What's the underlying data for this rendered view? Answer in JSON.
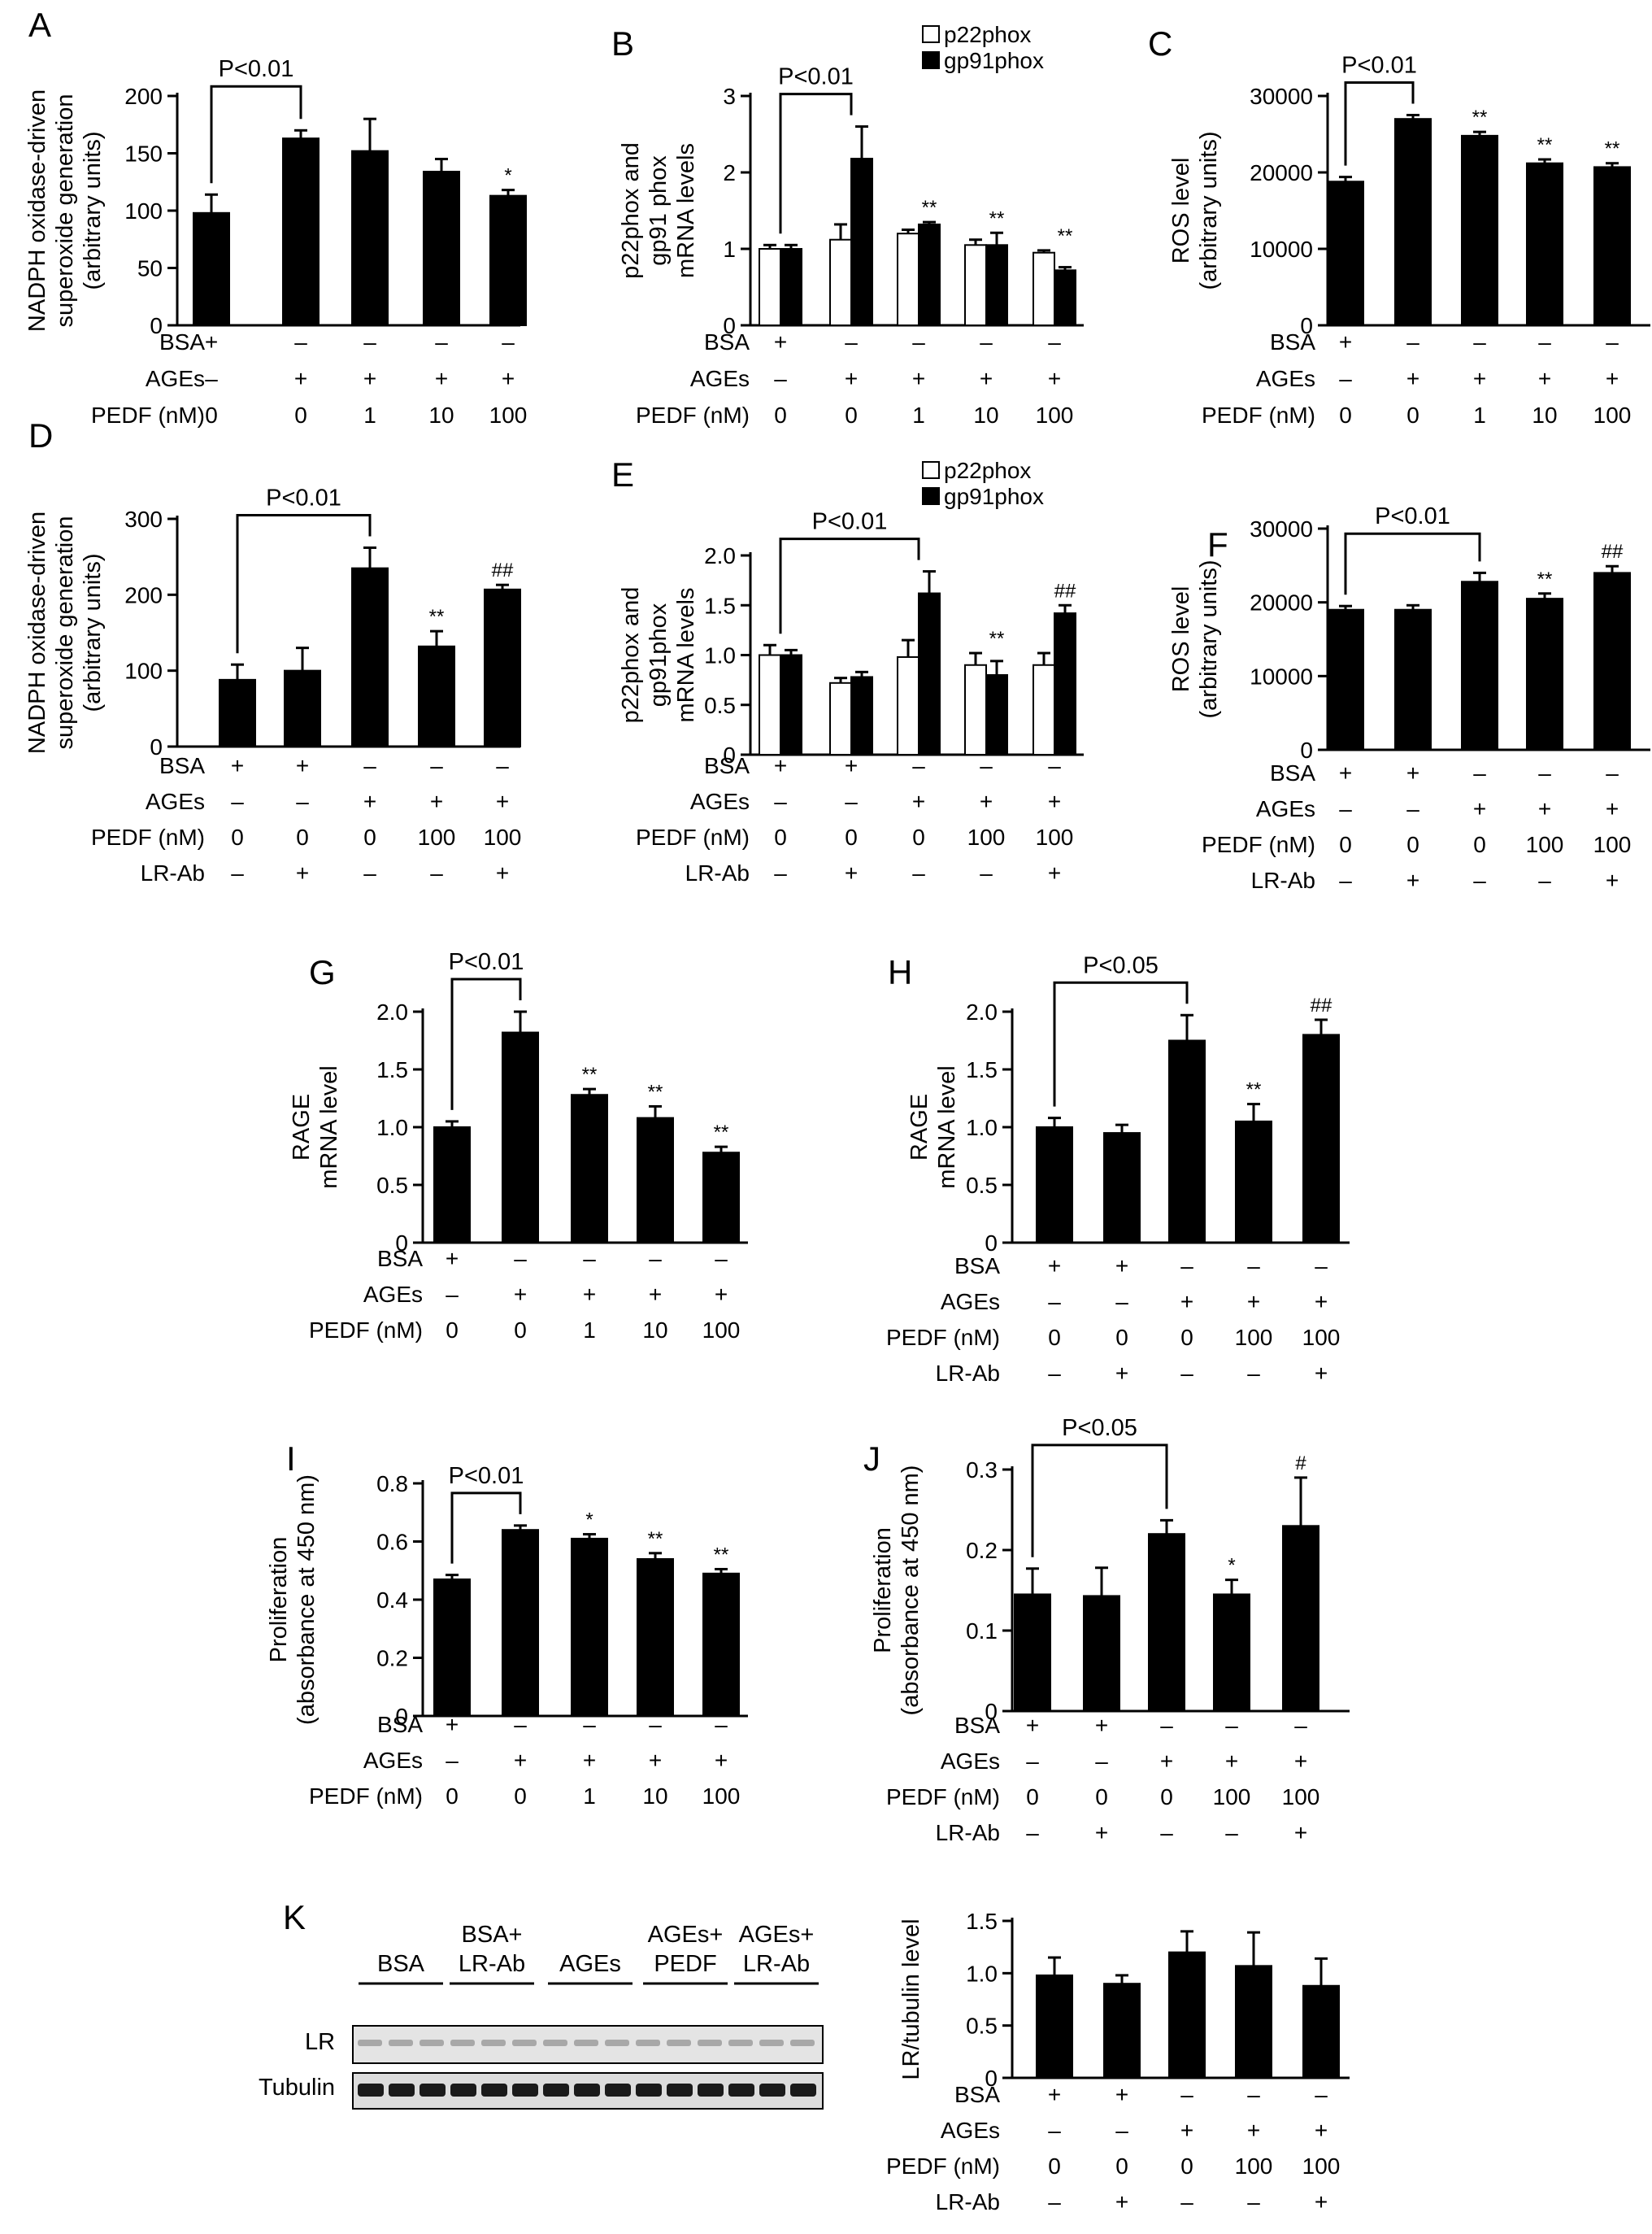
{
  "chart_data": [
    {
      "panel": "A",
      "type": "bar",
      "ylabel": [
        "NADPH oxidase-driven",
        "superoxide generation",
        "(arbitrary units)"
      ],
      "yticks": [
        0,
        50,
        100,
        150,
        200
      ],
      "ylim": [
        0,
        200
      ],
      "series": [
        {
          "values": [
            98,
            163,
            152,
            134,
            113
          ],
          "errors": [
            16,
            7,
            28,
            11,
            5
          ]
        }
      ],
      "significance": [
        "",
        "",
        "",
        "",
        "*"
      ],
      "bracket": {
        "from": 0,
        "to": 1,
        "label": "P<0.01"
      },
      "conditions": [
        {
          "label": "BSA",
          "values": [
            "+",
            "–",
            "–",
            "–",
            "–"
          ]
        },
        {
          "label": "AGEs",
          "values": [
            "–",
            "+",
            "+",
            "+",
            "+"
          ]
        },
        {
          "label": "PEDF (nM)",
          "values": [
            "0",
            "0",
            "1",
            "10",
            "100"
          ]
        }
      ]
    },
    {
      "panel": "B",
      "type": "bar",
      "ylabel": [
        "p22phox and",
        "gp91 phox",
        "mRNA levels"
      ],
      "yticks": [
        0,
        1,
        2,
        3
      ],
      "ylim": [
        0,
        3
      ],
      "series": [
        {
          "name": "p22phox",
          "values": [
            1.0,
            1.12,
            1.2,
            1.05,
            0.95
          ],
          "errors": [
            0.05,
            0.2,
            0.05,
            0.07,
            0.03
          ]
        },
        {
          "name": "gp91phox",
          "values": [
            1.0,
            2.18,
            1.32,
            1.05,
            0.72
          ],
          "errors": [
            0.05,
            0.42,
            0.03,
            0.16,
            0.04
          ]
        }
      ],
      "significance": [
        "",
        "",
        "**",
        "**",
        "**"
      ],
      "bracket": {
        "from": 0,
        "to": 1,
        "label": "P<0.01"
      },
      "conditions": [
        {
          "label": "BSA",
          "values": [
            "+",
            "–",
            "–",
            "–",
            "–"
          ]
        },
        {
          "label": "AGEs",
          "values": [
            "–",
            "+",
            "+",
            "+",
            "+"
          ]
        },
        {
          "label": "PEDF (nM)",
          "values": [
            "0",
            "0",
            "1",
            "10",
            "100"
          ]
        }
      ]
    },
    {
      "panel": "C",
      "type": "bar",
      "ylabel": [
        "ROS level",
        "(arbitrary units)"
      ],
      "yticks": [
        0,
        10000,
        20000,
        30000
      ],
      "ylim": [
        0,
        30000
      ],
      "series": [
        {
          "values": [
            18800,
            27000,
            24800,
            21200,
            20700
          ],
          "errors": [
            600,
            500,
            500,
            500,
            500
          ]
        }
      ],
      "significance": [
        "",
        "",
        "**",
        "**",
        "**"
      ],
      "bracket": {
        "from": 0,
        "to": 1,
        "label": "P<0.01"
      },
      "conditions": [
        {
          "label": "BSA",
          "values": [
            "+",
            "–",
            "–",
            "–",
            "–"
          ]
        },
        {
          "label": "AGEs",
          "values": [
            "–",
            "+",
            "+",
            "+",
            "+"
          ]
        },
        {
          "label": "PEDF (nM)",
          "values": [
            "0",
            "0",
            "1",
            "10",
            "100"
          ]
        }
      ]
    },
    {
      "panel": "D",
      "type": "bar",
      "ylabel": [
        "NADPH oxidase-driven",
        "superoxide generation",
        "(arbitrary units)"
      ],
      "yticks": [
        0,
        100,
        200,
        300
      ],
      "ylim": [
        0,
        300
      ],
      "series": [
        {
          "values": [
            88,
            100,
            235,
            132,
            207
          ],
          "errors": [
            20,
            30,
            27,
            20,
            6
          ]
        }
      ],
      "significance": [
        "",
        "",
        "",
        "**",
        "##"
      ],
      "bracket": {
        "from": 0,
        "to": 2,
        "label": "P<0.01"
      },
      "conditions": [
        {
          "label": "BSA",
          "values": [
            "+",
            "+",
            "–",
            "–",
            "–"
          ]
        },
        {
          "label": "AGEs",
          "values": [
            "–",
            "–",
            "+",
            "+",
            "+"
          ]
        },
        {
          "label": "PEDF (nM)",
          "values": [
            "0",
            "0",
            "0",
            "100",
            "100"
          ]
        },
        {
          "label": "LR-Ab",
          "values": [
            "–",
            "+",
            "–",
            "–",
            "+"
          ]
        }
      ]
    },
    {
      "panel": "E",
      "type": "bar",
      "ylabel": [
        "p22phox and",
        "gp91phox",
        "mRNA levels"
      ],
      "yticks": [
        0,
        0.5,
        1.0,
        1.5,
        2.0
      ],
      "yticklabels": [
        "0",
        "0.5",
        "1.0",
        "1.5",
        "2.0"
      ],
      "ylim": [
        0,
        2.0
      ],
      "series": [
        {
          "name": "p22phox",
          "values": [
            1.0,
            0.72,
            0.98,
            0.9,
            0.9
          ],
          "errors": [
            0.1,
            0.05,
            0.17,
            0.12,
            0.12
          ]
        },
        {
          "name": "gp91phox",
          "values": [
            1.0,
            0.78,
            1.62,
            0.8,
            1.42
          ],
          "errors": [
            0.05,
            0.05,
            0.22,
            0.14,
            0.08
          ]
        }
      ],
      "significance": [
        "",
        "",
        "",
        "**",
        "##"
      ],
      "bracket": {
        "from": 0,
        "to": 2,
        "label": "P<0.01"
      },
      "conditions": [
        {
          "label": "BSA",
          "values": [
            "+",
            "+",
            "–",
            "–",
            "–"
          ]
        },
        {
          "label": "AGEs",
          "values": [
            "–",
            "–",
            "+",
            "+",
            "+"
          ]
        },
        {
          "label": "PEDF (nM)",
          "values": [
            "0",
            "0",
            "0",
            "100",
            "100"
          ]
        },
        {
          "label": "LR-Ab",
          "values": [
            "–",
            "+",
            "–",
            "–",
            "+"
          ]
        }
      ]
    },
    {
      "panel": "F",
      "type": "bar",
      "ylabel": [
        "ROS level",
        "(arbitrary units)"
      ],
      "yticks": [
        0,
        10000,
        20000,
        30000
      ],
      "ylim": [
        0,
        30000
      ],
      "series": [
        {
          "values": [
            19000,
            19000,
            22800,
            20500,
            24000
          ],
          "errors": [
            500,
            600,
            1200,
            700,
            900
          ]
        }
      ],
      "significance": [
        "",
        "",
        "",
        "**",
        "##"
      ],
      "bracket": {
        "from": 0,
        "to": 2,
        "label": "P<0.01"
      },
      "conditions": [
        {
          "label": "BSA",
          "values": [
            "+",
            "+",
            "–",
            "–",
            "–"
          ]
        },
        {
          "label": "AGEs",
          "values": [
            "–",
            "–",
            "+",
            "+",
            "+"
          ]
        },
        {
          "label": "PEDF (nM)",
          "values": [
            "0",
            "0",
            "0",
            "100",
            "100"
          ]
        },
        {
          "label": "LR-Ab",
          "values": [
            "–",
            "+",
            "–",
            "–",
            "+"
          ]
        }
      ]
    },
    {
      "panel": "G",
      "type": "bar",
      "ylabel": [
        "RAGE",
        "mRNA level"
      ],
      "yticks": [
        0,
        0.5,
        1.0,
        1.5,
        2.0
      ],
      "yticklabels": [
        "0",
        "0.5",
        "1.0",
        "1.5",
        "2.0"
      ],
      "ylim": [
        0,
        2.0
      ],
      "series": [
        {
          "values": [
            1.0,
            1.82,
            1.28,
            1.08,
            0.78
          ],
          "errors": [
            0.05,
            0.18,
            0.05,
            0.1,
            0.05
          ]
        }
      ],
      "significance": [
        "",
        "",
        "**",
        "**",
        "**"
      ],
      "bracket": {
        "from": 0,
        "to": 1,
        "label": "P<0.01"
      },
      "conditions": [
        {
          "label": "BSA",
          "values": [
            "+",
            "–",
            "–",
            "–",
            "–"
          ]
        },
        {
          "label": "AGEs",
          "values": [
            "–",
            "+",
            "+",
            "+",
            "+"
          ]
        },
        {
          "label": "PEDF (nM)",
          "values": [
            "0",
            "0",
            "1",
            "10",
            "100"
          ]
        }
      ]
    },
    {
      "panel": "H",
      "type": "bar",
      "ylabel": [
        "RAGE",
        "mRNA level"
      ],
      "yticks": [
        0,
        0.5,
        1.0,
        1.5,
        2.0
      ],
      "yticklabels": [
        "0",
        "0.5",
        "1.0",
        "1.5",
        "2.0"
      ],
      "ylim": [
        0,
        2.0
      ],
      "series": [
        {
          "values": [
            1.0,
            0.95,
            1.75,
            1.05,
            1.8
          ],
          "errors": [
            0.08,
            0.07,
            0.22,
            0.15,
            0.13
          ]
        }
      ],
      "significance": [
        "",
        "",
        "",
        "**",
        "##"
      ],
      "bracket": {
        "from": 0,
        "to": 2,
        "label": "P<0.05"
      },
      "conditions": [
        {
          "label": "BSA",
          "values": [
            "+",
            "+",
            "–",
            "–",
            "–"
          ]
        },
        {
          "label": "AGEs",
          "values": [
            "–",
            "–",
            "+",
            "+",
            "+"
          ]
        },
        {
          "label": "PEDF (nM)",
          "values": [
            "0",
            "0",
            "0",
            "100",
            "100"
          ]
        },
        {
          "label": "LR-Ab",
          "values": [
            "–",
            "+",
            "–",
            "–",
            "+"
          ]
        }
      ]
    },
    {
      "panel": "I",
      "type": "bar",
      "ylabel": [
        "Proliferation",
        "(absorbance at 450 nm)"
      ],
      "yticks": [
        0,
        0.2,
        0.4,
        0.6,
        0.8
      ],
      "ylim": [
        0,
        0.8
      ],
      "series": [
        {
          "values": [
            0.47,
            0.64,
            0.61,
            0.54,
            0.49
          ],
          "errors": [
            0.015,
            0.015,
            0.015,
            0.02,
            0.015
          ]
        }
      ],
      "significance": [
        "",
        "",
        "*",
        "**",
        "**"
      ],
      "bracket": {
        "from": 0,
        "to": 1,
        "label": "P<0.01"
      },
      "conditions": [
        {
          "label": "BSA",
          "values": [
            "+",
            "–",
            "–",
            "–",
            "–"
          ]
        },
        {
          "label": "AGEs",
          "values": [
            "–",
            "+",
            "+",
            "+",
            "+"
          ]
        },
        {
          "label": "PEDF (nM)",
          "values": [
            "0",
            "0",
            "1",
            "10",
            "100"
          ]
        }
      ]
    },
    {
      "panel": "J",
      "type": "bar",
      "ylabel": [
        "Proliferation",
        "(absorbance at 450 nm)"
      ],
      "yticks": [
        0,
        0.1,
        0.2,
        0.3
      ],
      "ylim": [
        0,
        0.3
      ],
      "series": [
        {
          "values": [
            0.145,
            0.143,
            0.22,
            0.145,
            0.23
          ],
          "errors": [
            0.032,
            0.035,
            0.017,
            0.018,
            0.06
          ]
        }
      ],
      "significance": [
        "",
        "",
        "",
        "*",
        "#"
      ],
      "bracket": {
        "from": 0,
        "to": 2,
        "label": "P<0.05"
      },
      "conditions": [
        {
          "label": "BSA",
          "values": [
            "+",
            "+",
            "–",
            "–",
            "–"
          ]
        },
        {
          "label": "AGEs",
          "values": [
            "–",
            "–",
            "+",
            "+",
            "+"
          ]
        },
        {
          "label": "PEDF (nM)",
          "values": [
            "0",
            "0",
            "0",
            "100",
            "100"
          ]
        },
        {
          "label": "LR-Ab",
          "values": [
            "–",
            "+",
            "–",
            "–",
            "+"
          ]
        }
      ]
    },
    {
      "panel": "",
      "type": "bar",
      "ylabel": [
        "LR/tubulin level"
      ],
      "yticks": [
        0,
        0.5,
        1.0,
        1.5
      ],
      "yticklabels": [
        "0",
        "0.5",
        "1.0",
        "1.5"
      ],
      "ylim": [
        0,
        1.5
      ],
      "series": [
        {
          "values": [
            0.98,
            0.9,
            1.2,
            1.07,
            0.88
          ],
          "errors": [
            0.17,
            0.08,
            0.2,
            0.32,
            0.26
          ]
        }
      ],
      "significance": [
        "",
        "",
        "",
        "",
        ""
      ],
      "bracket": null,
      "conditions": [
        {
          "label": "BSA",
          "values": [
            "+",
            "+",
            "–",
            "–",
            "–"
          ]
        },
        {
          "label": "AGEs",
          "values": [
            "–",
            "–",
            "+",
            "+",
            "+"
          ]
        },
        {
          "label": "PEDF (nM)",
          "values": [
            "0",
            "0",
            "0",
            "100",
            "100"
          ]
        },
        {
          "label": "LR-Ab",
          "values": [
            "–",
            "+",
            "–",
            "–",
            "+"
          ]
        }
      ]
    }
  ],
  "legend": {
    "p22phox": "p22phox",
    "gp91phox": "gp91phox"
  },
  "blot": {
    "panel": "K",
    "groups": [
      [
        "BSA"
      ],
      [
        "BSA+",
        "LR-Ab"
      ],
      [
        "AGEs"
      ],
      [
        "AGEs+",
        "PEDF"
      ],
      [
        "AGEs+",
        "LR-Ab"
      ]
    ],
    "rows": [
      "LR",
      "Tubulin"
    ]
  },
  "colors": {
    "bar": "#000000",
    "open_bar": "#ffffff",
    "sig": "#404040"
  }
}
